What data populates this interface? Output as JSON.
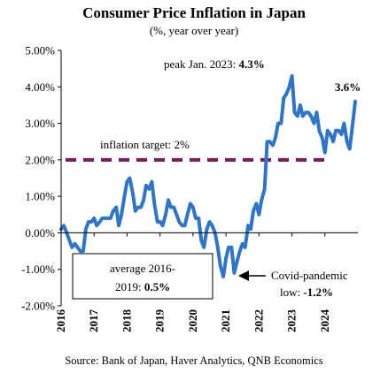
{
  "chart_data": {
    "type": "line",
    "title": "Consumer Price Inflation in Japan",
    "subtitle": "(%, year over year)",
    "xlabel": "",
    "ylabel": "",
    "ylim": [
      -2.0,
      5.0
    ],
    "xlim": [
      2016.0,
      2025.0
    ],
    "y_ticks": [
      "5.00%",
      "4.00%",
      "3.00%",
      "2.00%",
      "1.00%",
      "0.00%",
      "-1.00%",
      "-2.00%"
    ],
    "x_ticks": [
      "2016",
      "2017",
      "2018",
      "2019",
      "2020",
      "2021",
      "2022",
      "2023",
      "2024"
    ],
    "grid": false,
    "series": [
      {
        "color": "#2e75c9",
        "x": [
          2016.0,
          2016.08,
          2016.17,
          2016.25,
          2016.33,
          2016.42,
          2016.5,
          2016.58,
          2016.67,
          2016.75,
          2016.83,
          2016.92,
          2017.0,
          2017.08,
          2017.17,
          2017.25,
          2017.33,
          2017.42,
          2017.5,
          2017.58,
          2017.67,
          2017.75,
          2017.83,
          2017.92,
          2018.0,
          2018.08,
          2018.17,
          2018.25,
          2018.33,
          2018.42,
          2018.5,
          2018.58,
          2018.67,
          2018.75,
          2018.83,
          2018.92,
          2019.0,
          2019.08,
          2019.17,
          2019.25,
          2019.33,
          2019.42,
          2019.5,
          2019.58,
          2019.67,
          2019.75,
          2019.83,
          2019.92,
          2020.0,
          2020.08,
          2020.17,
          2020.25,
          2020.33,
          2020.42,
          2020.5,
          2020.58,
          2020.67,
          2020.75,
          2020.83,
          2020.92,
          2021.0,
          2021.08,
          2021.17,
          2021.25,
          2021.33,
          2021.42,
          2021.5,
          2021.58,
          2021.67,
          2021.75,
          2021.83,
          2021.92,
          2022.0,
          2022.08,
          2022.17,
          2022.25,
          2022.33,
          2022.42,
          2022.5,
          2022.58,
          2022.67,
          2022.75,
          2022.83,
          2022.92,
          2023.0,
          2023.08,
          2023.17,
          2023.25,
          2023.33,
          2023.42,
          2023.5,
          2023.58,
          2023.67,
          2023.75,
          2023.83,
          2023.92,
          2024.0,
          2024.08,
          2024.17,
          2024.25,
          2024.33,
          2024.42,
          2024.5,
          2024.58,
          2024.67,
          2024.75,
          2024.83,
          2024.92
        ],
        "values": [
          0.1,
          0.2,
          0.0,
          -0.2,
          -0.4,
          -0.3,
          -0.4,
          -0.5,
          -0.5,
          0.1,
          0.3,
          0.3,
          0.4,
          0.2,
          0.3,
          0.4,
          0.4,
          0.4,
          0.4,
          0.6,
          0.7,
          0.2,
          0.5,
          1.0,
          1.4,
          1.5,
          1.1,
          0.6,
          0.7,
          0.7,
          0.9,
          1.3,
          1.2,
          1.4,
          0.8,
          0.3,
          0.3,
          0.2,
          0.5,
          0.9,
          0.7,
          0.7,
          0.5,
          0.3,
          0.2,
          0.2,
          0.5,
          0.8,
          0.7,
          0.4,
          0.4,
          -0.2,
          -0.4,
          0.1,
          0.3,
          0.2,
          0.0,
          -0.4,
          -0.9,
          -1.2,
          -0.7,
          -0.4,
          -0.4,
          -1.1,
          -0.8,
          -0.5,
          -0.3,
          -0.4,
          0.2,
          0.1,
          0.6,
          0.8,
          0.5,
          0.9,
          1.2,
          2.5,
          2.5,
          2.4,
          2.6,
          3.0,
          3.0,
          3.7,
          3.8,
          4.0,
          4.3,
          3.3,
          3.2,
          3.5,
          3.2,
          3.3,
          3.3,
          3.2,
          3.0,
          3.3,
          2.8,
          2.6,
          2.2,
          2.8,
          2.7,
          2.5,
          2.8,
          2.8,
          2.7,
          3.0,
          2.5,
          2.3,
          2.9,
          3.6
        ]
      }
    ],
    "target_line": {
      "value": 2.0,
      "color": "#7a1a5c",
      "label": "inflation target: 2%"
    },
    "annotations": {
      "peak_text": "peak Jan. 2023: ",
      "peak_value": "4.3%",
      "end_value": "3.6%",
      "target_text": "inflation target: 2%",
      "average_line1": "average 2016-",
      "average_line2": "2019: ",
      "average_value": "0.5%",
      "covid_line1": "Covid-pandemic",
      "covid_line2": "low: ",
      "covid_value": "-1.2%"
    },
    "source": "Source: Bank of Japan, Haver Analytics, QNB Economics"
  }
}
